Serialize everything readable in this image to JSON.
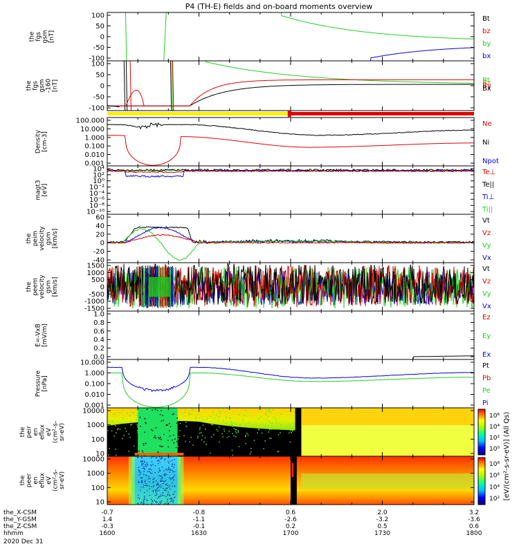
{
  "title": "P4 (TH-E) fields and on-board moments overview",
  "colors": {
    "black": "#000000",
    "red": "#dd0000",
    "green": "#22cc22",
    "blue": "#0000dd",
    "yellow": "#ffee00",
    "orange": "#cc8800"
  },
  "chart_data": [
    {
      "type": "line",
      "ylabel": [
        "the",
        "fgs",
        "gsm",
        "[nT]"
      ],
      "yticks": [
        "100",
        "50",
        "0",
        "-50",
        "-100"
      ],
      "ylim": [
        -100,
        100
      ],
      "legend": [
        {
          "label": "Bt",
          "color": "#000000"
        },
        {
          "label": "bz",
          "color": "#dd0000"
        },
        {
          "label": "by",
          "color": "#22cc22"
        },
        {
          "label": "bx",
          "color": "#0000dd"
        }
      ]
    },
    {
      "type": "line",
      "ylabel": [
        "the",
        "fgs",
        "gsm",
        "-160",
        "[nT]"
      ],
      "yticks": [
        "100",
        "50",
        "0",
        "-50",
        "-100"
      ],
      "ylim": [
        -130,
        100
      ],
      "legend": [
        {
          "label": "Bt",
          "color": "#22cc22"
        },
        {
          "label": "Bz",
          "color": "#cc8800"
        },
        {
          "label": "By",
          "color": "#dd0000"
        },
        {
          "label": "Bx",
          "color": "#000000"
        }
      ]
    },
    {
      "type": "line",
      "ylabel": [
        "Density",
        "[cm-3]"
      ],
      "yticks": [
        "100.000",
        "10.000",
        "1.000",
        "0.100",
        "0.010",
        "0.001"
      ],
      "scale": "log",
      "legend": [
        {
          "label": "Ne",
          "color": "#dd0000"
        },
        {
          "label": "Ni",
          "color": "#000000"
        },
        {
          "label": "Npot",
          "color": "#0000dd"
        }
      ]
    },
    {
      "type": "line",
      "ylabel": [
        "magt3",
        "[eV]"
      ],
      "yticks": [
        "10⁴",
        "10²",
        "10⁰",
        "10⁻²",
        "10⁻⁴",
        "10⁻⁶",
        "10⁻⁸",
        "10⁻¹⁰"
      ],
      "scale": "log",
      "legend": [
        {
          "label": "Te⊥",
          "color": "#dd0000"
        },
        {
          "label": "Te||",
          "color": "#000000"
        },
        {
          "label": "Ti⊥",
          "color": "#0000dd"
        },
        {
          "label": "Ti||",
          "color": "#22cc22"
        }
      ]
    },
    {
      "type": "line",
      "ylabel": [
        "the",
        "peim",
        "velocity",
        "gsm",
        "[km/s]"
      ],
      "yticks": [
        "60",
        "40",
        "20",
        "0",
        "-20",
        "-40"
      ],
      "ylim": [
        -40,
        60
      ],
      "legend": [
        {
          "label": "Vt",
          "color": "#000000"
        },
        {
          "label": "Vz",
          "color": "#dd0000"
        },
        {
          "label": "Vy",
          "color": "#22cc22"
        },
        {
          "label": "Vx",
          "color": "#0000dd"
        }
      ]
    },
    {
      "type": "line",
      "ylabel": [
        "the",
        "peem",
        "velocity",
        "gsm",
        "[km/s]"
      ],
      "yticks": [
        "1500",
        "1000",
        "500",
        "0",
        "-500",
        "-1000",
        "-1500"
      ],
      "ylim": [
        -1500,
        1500
      ],
      "legend": [
        {
          "label": "Vt",
          "color": "#000000"
        },
        {
          "label": "Vz",
          "color": "#dd0000"
        },
        {
          "label": "Vy",
          "color": "#22cc22"
        },
        {
          "label": "Vx",
          "color": "#0000dd"
        }
      ]
    },
    {
      "type": "line",
      "ylabel": [
        "E=-VxB",
        "[mV/m]"
      ],
      "yticks": [
        "1.0",
        "0.8",
        "0.6",
        "0.4",
        "0.2",
        "0.0"
      ],
      "ylim": [
        0,
        1
      ],
      "legend": [
        {
          "label": "Ez",
          "color": "#dd0000"
        },
        {
          "label": "Ey",
          "color": "#22cc22"
        },
        {
          "label": "Ex",
          "color": "#0000dd"
        }
      ]
    },
    {
      "type": "line",
      "ylabel": [
        "Pressure",
        "[nPa]"
      ],
      "yticks": [
        "10.000",
        "1.000",
        "0.100",
        "0.010",
        "0.001"
      ],
      "scale": "log",
      "legend": [
        {
          "label": "Pt",
          "color": "#000000"
        },
        {
          "label": "Pb",
          "color": "#dd0000"
        },
        {
          "label": "Pe",
          "color": "#22cc22"
        },
        {
          "label": "Pi",
          "color": "#0000dd"
        }
      ]
    },
    {
      "type": "heatmap",
      "ylabel": [
        "the",
        "peir",
        "en",
        "eflux",
        "eV",
        "(cm²-s-",
        "sr-eV)"
      ],
      "yticks": [
        "10000",
        "1000",
        "100",
        "10"
      ],
      "scale": "log"
    },
    {
      "type": "heatmap",
      "ylabel": [
        "the",
        "peer",
        "en",
        "eflux",
        "eV",
        "(cm²-s-",
        "sr-eV)"
      ],
      "yticks": [
        "10000",
        "1000",
        "100",
        "10"
      ],
      "scale": "log"
    }
  ],
  "colorbars": [
    {
      "ticks": [
        "10⁶",
        "10⁴",
        "10²",
        "10⁰"
      ]
    },
    {
      "ticks": [
        "10⁸",
        "10⁶",
        "10⁴",
        "10²"
      ]
    }
  ],
  "colorbar_label": "[eV/(cm²-s-sr-eV)] (All Qs)",
  "xaxis": {
    "rows": [
      {
        "label": "the_X-CSM",
        "values": [
          "-0.7",
          "-0.8",
          "0.6",
          "2.0",
          "3.2"
        ]
      },
      {
        "label": "the_Y-GSM",
        "values": [
          "1.4",
          "-1.1",
          "-2.6",
          "-3.2",
          "-3.6"
        ]
      },
      {
        "label": "the_Z-CSM",
        "values": [
          "-0.3",
          "-0.1",
          "0.2",
          "0.5",
          "0.6"
        ]
      },
      {
        "label": "hhmm",
        "values": [
          "1600",
          "1630",
          "1700",
          "1730",
          "1800"
        ]
      }
    ],
    "date": "2020 Dec 31",
    "times": [
      0,
      30,
      60,
      90,
      120
    ]
  }
}
